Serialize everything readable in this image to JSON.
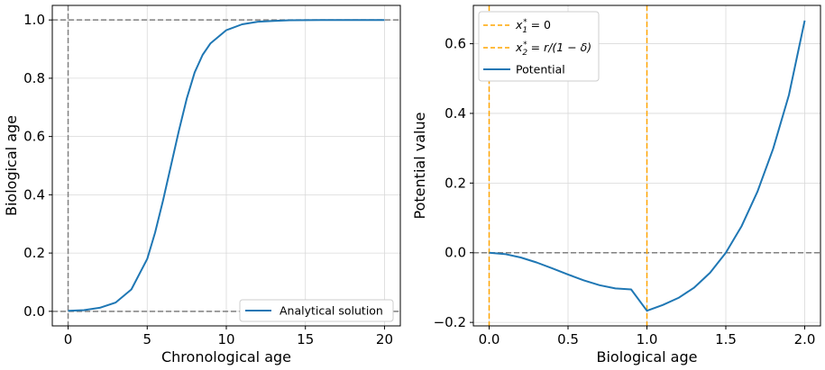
{
  "chart_data": [
    {
      "type": "line",
      "xlabel": "Chronological age",
      "ylabel": "Biological age",
      "xlim": [
        -1,
        21
      ],
      "ylim": [
        -0.05,
        1.05
      ],
      "xticks": [
        0,
        5,
        10,
        15,
        20
      ],
      "yticks": [
        0.0,
        0.2,
        0.4,
        0.6,
        0.8,
        1.0
      ],
      "xtick_labels": [
        "0",
        "5",
        "10",
        "15",
        "20"
      ],
      "ytick_labels": [
        "0.0",
        "0.2",
        "0.4",
        "0.6",
        "0.8",
        "1.0"
      ],
      "grid": true,
      "legend_position": "lower-right",
      "series": [
        {
          "name": "Analytical solution",
          "color": "#1f77b4",
          "x": [
            0,
            1,
            2,
            3,
            4,
            5,
            5.5,
            6,
            6.5,
            7,
            7.5,
            8,
            8.5,
            9,
            10,
            11,
            12,
            13,
            14,
            16,
            18,
            20
          ],
          "y": [
            0.002,
            0.004,
            0.012,
            0.03,
            0.075,
            0.18,
            0.27,
            0.38,
            0.5,
            0.62,
            0.73,
            0.82,
            0.88,
            0.92,
            0.965,
            0.985,
            0.994,
            0.997,
            0.999,
            1.0,
            1.0,
            1.0
          ]
        }
      ],
      "reference_lines": {
        "horizontal": [
          0,
          1
        ],
        "vertical": [
          0
        ],
        "color": "#808080",
        "style": "dashed"
      }
    },
    {
      "type": "line",
      "xlabel": "Biological age",
      "ylabel": "Potential value",
      "xlim": [
        -0.1,
        2.1
      ],
      "ylim": [
        -0.21,
        0.71
      ],
      "xticks": [
        0.0,
        0.5,
        1.0,
        1.5,
        2.0
      ],
      "yticks": [
        -0.2,
        0.0,
        0.2,
        0.4,
        0.6
      ],
      "xtick_labels": [
        "0.0",
        "0.5",
        "1.0",
        "1.5",
        "2.0"
      ],
      "ytick_labels": [
        "−0.2",
        "0.0",
        "0.2",
        "0.4",
        "0.6"
      ],
      "grid": true,
      "legend_position": "top-left",
      "series": [
        {
          "name": "Potential",
          "color": "#1f77b4",
          "x": [
            0,
            0.1,
            0.2,
            0.3,
            0.4,
            0.5,
            0.6,
            0.7,
            0.8,
            0.9,
            1.0,
            1.1,
            1.2,
            1.3,
            1.4,
            1.5,
            1.6,
            1.7,
            1.8,
            1.9,
            2.0
          ],
          "y": [
            0,
            -0.0037,
            -0.0136,
            -0.0279,
            -0.0448,
            -0.0625,
            -0.0792,
            -0.0931,
            -0.1024,
            -0.1053,
            -0.1667,
            -0.1501,
            -0.1296,
            -0.0999,
            -0.0576,
            0.0,
            0.0764,
            0.1747,
            0.2987,
            0.4529,
            0.6667
          ]
        }
      ],
      "vertical_markers": [
        {
          "name": "x_1^* = 0",
          "x": 0,
          "color": "#ffa500",
          "style": "dashed"
        },
        {
          "name": "x_2^* = r/(1 - δ)",
          "x": 1,
          "color": "#ffa500",
          "style": "dashed"
        }
      ],
      "reference_lines": {
        "horizontal": [
          0
        ],
        "color": "#808080",
        "style": "dashed"
      }
    }
  ]
}
